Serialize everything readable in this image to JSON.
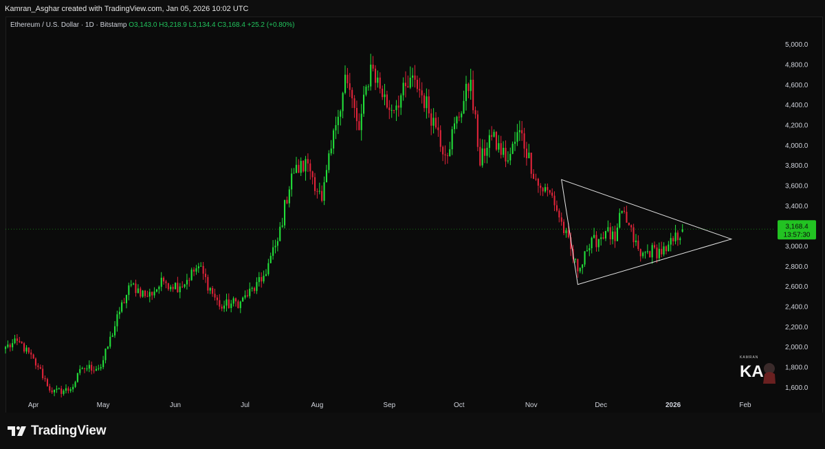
{
  "header": {
    "attribution": "Kamran_Asghar created with TradingView.com, Jan 05, 2026 10:02 UTC"
  },
  "legend": {
    "symbol": "Ethereum / U.S. Dollar · 1D · Bitstamp",
    "open": "O3,143.0",
    "high": "H3,218.9",
    "low": "L3,134.4",
    "close": "C3,168.4",
    "change": "+25.2 (+0.80%)"
  },
  "price_tag": {
    "price": "3,168.4",
    "countdown": "13:57:30"
  },
  "footer": {
    "brand": "TradingView"
  },
  "watermark": {
    "text": "KA",
    "caption": "KAMRAN"
  },
  "colors": {
    "background": "#0b0b0b",
    "up": "#22e03a",
    "down": "#e2243a",
    "axis_text": "#d1d4dc",
    "triangle": "#e8e8e8",
    "price_tag": "#22c322"
  },
  "chart_data": {
    "type": "candlestick",
    "title": "Ethereum / U.S. Dollar · 1D · Bitstamp",
    "x_axis": {
      "type": "date",
      "range": [
        "2025-03-20",
        "2026-02-14"
      ],
      "tick_labels": [
        "Apr",
        "May",
        "Jun",
        "Jul",
        "Aug",
        "Sep",
        "Oct",
        "Nov",
        "Dec",
        "2026",
        "Feb"
      ],
      "tick_dates": [
        "2025-04-01",
        "2025-05-01",
        "2025-06-01",
        "2025-07-01",
        "2025-08-01",
        "2025-09-01",
        "2025-10-01",
        "2025-11-01",
        "2025-12-01",
        "2026-01-01",
        "2026-02-01"
      ]
    },
    "y_axis": {
      "position": "right",
      "range": [
        1520,
        5100
      ],
      "ticks": [
        1600,
        1800,
        2000,
        2200,
        2400,
        2600,
        2800,
        3000,
        3200,
        3400,
        3600,
        3800,
        4000,
        4200,
        4400,
        4600,
        4800,
        5000
      ],
      "tick_labels": [
        "1,600.0",
        "1,800.0",
        "2,000.0",
        "2,200.0",
        "2,400.0",
        "2,600.0",
        "2,800.0",
        "3,000.0",
        "3,200.0",
        "3,400.0",
        "3,600.0",
        "3,800.0",
        "4,000.0",
        "4,200.0",
        "4,400.0",
        "4,600.0",
        "4,800.0",
        "5,000.0"
      ]
    },
    "grid": false,
    "close_anchors": [
      [
        "2025-03-20",
        2000
      ],
      [
        "2025-03-26",
        2050
      ],
      [
        "2025-04-03",
        1800
      ],
      [
        "2025-04-09",
        1550
      ],
      [
        "2025-04-17",
        1580
      ],
      [
        "2025-04-22",
        1790
      ],
      [
        "2025-04-30",
        1800
      ],
      [
        "2025-05-08",
        2350
      ],
      [
        "2025-05-13",
        2620
      ],
      [
        "2025-05-20",
        2500
      ],
      [
        "2025-05-27",
        2650
      ],
      [
        "2025-06-03",
        2600
      ],
      [
        "2025-06-11",
        2800
      ],
      [
        "2025-06-20",
        2400
      ],
      [
        "2025-06-29",
        2450
      ],
      [
        "2025-07-08",
        2650
      ],
      [
        "2025-07-15",
        3050
      ],
      [
        "2025-07-21",
        3720
      ],
      [
        "2025-07-28",
        3820
      ],
      [
        "2025-08-03",
        3450
      ],
      [
        "2025-08-09",
        4200
      ],
      [
        "2025-08-13",
        4700
      ],
      [
        "2025-08-19",
        4150
      ],
      [
        "2025-08-24",
        4800
      ],
      [
        "2025-09-01",
        4350
      ],
      [
        "2025-09-12",
        4650
      ],
      [
        "2025-09-22",
        4150
      ],
      [
        "2025-09-25",
        3900
      ],
      [
        "2025-10-06",
        4650
      ],
      [
        "2025-10-10",
        3800
      ],
      [
        "2025-10-14",
        4100
      ],
      [
        "2025-10-22",
        3850
      ],
      [
        "2025-10-27",
        4150
      ],
      [
        "2025-11-04",
        3600
      ],
      [
        "2025-11-10",
        3500
      ],
      [
        "2025-11-21",
        2750
      ],
      [
        "2025-11-24",
        2950
      ],
      [
        "2025-12-03",
        3150
      ],
      [
        "2025-12-07",
        3050
      ],
      [
        "2025-12-10",
        3350
      ],
      [
        "2025-12-18",
        2900
      ],
      [
        "2025-12-21",
        2950
      ],
      [
        "2025-12-29",
        2950
      ],
      [
        "2026-01-05",
        3168.4
      ]
    ],
    "last_candle": {
      "date": "2026-01-05",
      "open": 3143.0,
      "high": 3218.9,
      "low": 3134.4,
      "close": 3168.4,
      "change": 25.2,
      "change_pct": 0.8
    },
    "annotations": [
      {
        "type": "symmetrical-triangle",
        "points": [
          [
            "2025-11-14",
            3660
          ],
          [
            "2026-01-26",
            3070
          ],
          [
            "2025-11-21",
            2620
          ]
        ]
      }
    ]
  }
}
